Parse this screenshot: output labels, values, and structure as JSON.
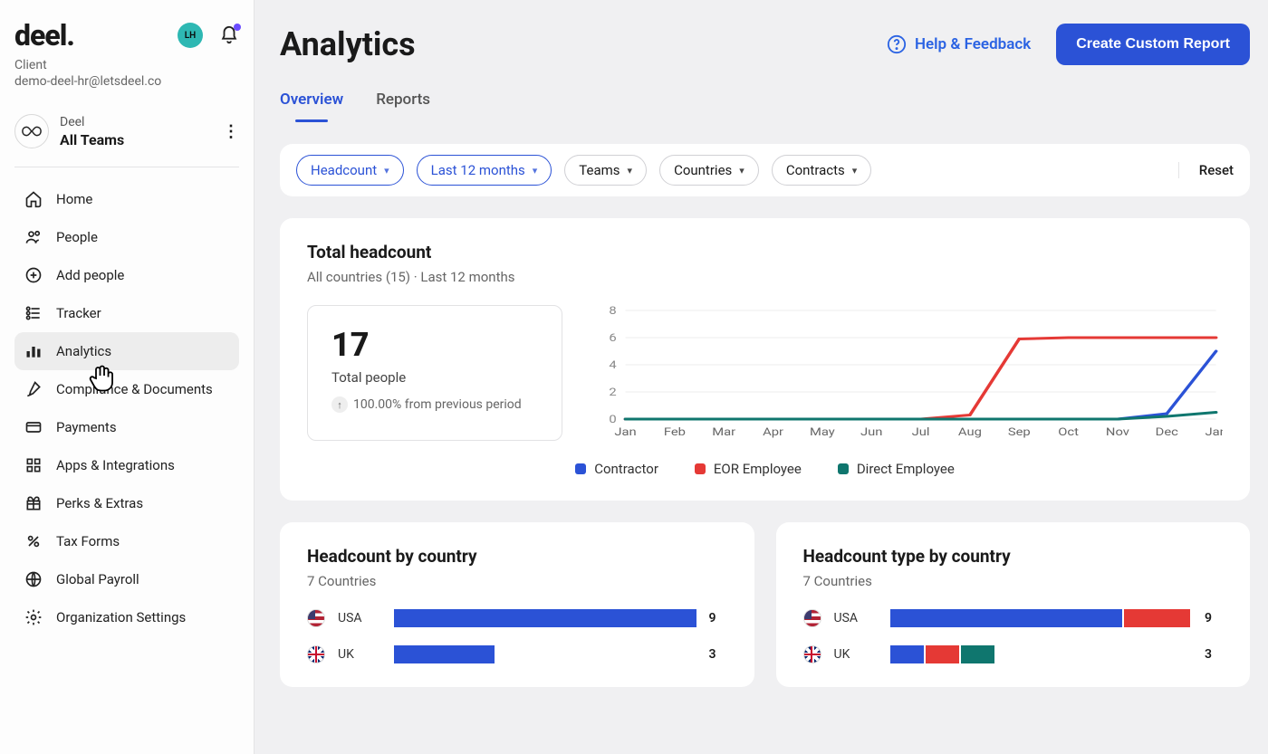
{
  "brand": {
    "logo_text": "deel.",
    "client_label": "Client",
    "email": "demo-deel-hr@letsdeel.co",
    "avatar_initials": "LH",
    "avatar_bg": "#2eb8b3"
  },
  "team": {
    "org": "Deel",
    "name": "All Teams"
  },
  "nav": {
    "items": [
      {
        "label": "Home",
        "icon": "home"
      },
      {
        "label": "People",
        "icon": "people"
      },
      {
        "label": "Add people",
        "icon": "add"
      },
      {
        "label": "Tracker",
        "icon": "tracker"
      },
      {
        "label": "Analytics",
        "icon": "analytics",
        "active": true
      },
      {
        "label": "Compliance & Documents",
        "icon": "compliance"
      },
      {
        "label": "Payments",
        "icon": "payments"
      },
      {
        "label": "Apps & Integrations",
        "icon": "apps"
      },
      {
        "label": "Perks & Extras",
        "icon": "perks"
      },
      {
        "label": "Tax Forms",
        "icon": "tax"
      },
      {
        "label": "Global Payroll",
        "icon": "payroll"
      },
      {
        "label": "Organization Settings",
        "icon": "settings"
      }
    ]
  },
  "header": {
    "title": "Analytics",
    "help_label": "Help & Feedback",
    "create_label": "Create Custom Report"
  },
  "tabs": [
    {
      "label": "Overview",
      "active": true
    },
    {
      "label": "Reports",
      "active": false
    }
  ],
  "filters": {
    "chips": [
      {
        "label": "Headcount",
        "selected": true
      },
      {
        "label": "Last 12 months",
        "selected": true
      },
      {
        "label": "Teams",
        "selected": false
      },
      {
        "label": "Countries",
        "selected": false
      },
      {
        "label": "Contracts",
        "selected": false
      }
    ],
    "reset_label": "Reset"
  },
  "headcount_card": {
    "title": "Total headcount",
    "subtitle": "All countries (15) · Last 12 months",
    "stat_value": "17",
    "stat_label": "Total people",
    "delta_text": "100.00% from previous period",
    "chart": {
      "type": "line",
      "x_labels": [
        "Jan",
        "Feb",
        "Mar",
        "Apr",
        "May",
        "Jun",
        "Jul",
        "Aug",
        "Sep",
        "Oct",
        "Nov",
        "Dec",
        "Jan"
      ],
      "y_ticks": [
        0,
        2,
        4,
        6,
        8
      ],
      "ylim": [
        0,
        8
      ],
      "grid_color": "#eeeeee",
      "background_color": "#ffffff",
      "tick_fontsize": 12,
      "line_width": 3,
      "series": [
        {
          "name": "Contractor",
          "color": "#2b52d6",
          "values": [
            0,
            0,
            0,
            0,
            0,
            0,
            0,
            0,
            0,
            0,
            0,
            0.4,
            5
          ]
        },
        {
          "name": "EOR Employee",
          "color": "#e53935",
          "values": [
            0,
            0,
            0,
            0,
            0,
            0,
            0,
            0.3,
            5.9,
            6,
            6,
            6,
            6
          ]
        },
        {
          "name": "Direct Employee",
          "color": "#0f766e",
          "values": [
            0,
            0,
            0,
            0,
            0,
            0,
            0,
            0,
            0,
            0,
            0,
            0.2,
            0.5
          ]
        }
      ]
    },
    "legend": [
      {
        "label": "Contractor",
        "color": "#2b52d6"
      },
      {
        "label": "EOR Employee",
        "color": "#e53935"
      },
      {
        "label": "Direct Employee",
        "color": "#0f766e"
      }
    ]
  },
  "by_country": {
    "title": "Headcount by country",
    "subtitle": "7 Countries",
    "max": 9,
    "bar_color": "#2b52d6",
    "rows": [
      {
        "flag": "usa",
        "name": "USA",
        "value": 9
      },
      {
        "flag": "uk",
        "name": "UK",
        "value": 3
      }
    ]
  },
  "type_by_country": {
    "title": "Headcount type by country",
    "subtitle": "7 Countries",
    "max": 9,
    "rows": [
      {
        "flag": "usa",
        "name": "USA",
        "value": 9,
        "segments": [
          {
            "v": 7,
            "color": "#2b52d6"
          },
          {
            "v": 2,
            "color": "#e53935"
          }
        ]
      },
      {
        "flag": "uk",
        "name": "UK",
        "value": 3,
        "segments": [
          {
            "v": 1,
            "color": "#2b52d6"
          },
          {
            "v": 1,
            "color": "#e53935"
          },
          {
            "v": 1,
            "color": "#0f766e"
          }
        ]
      }
    ]
  },
  "colors": {
    "accent": "#2b52d6"
  }
}
